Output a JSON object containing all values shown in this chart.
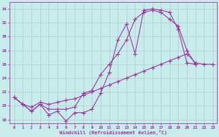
{
  "xlabel": "Windchill (Refroidissement éolien,°C)",
  "bg_color": "#c8ecec",
  "grid_color": "#b0c8c8",
  "line_color": "#993399",
  "markersize": 2.5,
  "xlim": [
    -0.5,
    23.5
  ],
  "ylim": [
    17.5,
    35.0
  ],
  "yticks": [
    18,
    20,
    22,
    24,
    26,
    28,
    30,
    32,
    34
  ],
  "xticks": [
    0,
    1,
    2,
    3,
    4,
    5,
    6,
    7,
    8,
    9,
    10,
    11,
    12,
    13,
    14,
    15,
    16,
    17,
    18,
    19,
    20,
    21,
    22,
    23
  ],
  "line1_x": [
    0,
    1,
    2,
    3,
    4,
    5,
    6,
    7,
    8,
    9,
    10,
    11,
    12,
    13,
    14,
    15,
    16,
    17,
    18,
    19,
    20,
    21
  ],
  "line1_y": [
    21.2,
    20.2,
    19.2,
    20.2,
    18.7,
    19.2,
    17.8,
    19.0,
    19.0,
    19.5,
    21.8,
    24.8,
    29.5,
    31.8,
    27.5,
    33.8,
    34.0,
    33.8,
    33.5,
    31.0,
    26.2,
    26.0
  ],
  "line2_x": [
    0,
    1,
    2,
    3,
    4,
    5,
    6,
    7,
    8,
    9,
    10,
    11,
    12,
    13,
    14,
    15,
    16,
    17,
    18,
    19,
    20,
    21
  ],
  "line2_y": [
    21.2,
    20.2,
    19.2,
    20.2,
    19.5,
    19.5,
    19.5,
    19.8,
    21.8,
    22.2,
    24.5,
    26.0,
    27.5,
    29.5,
    32.5,
    33.5,
    33.8,
    33.5,
    32.5,
    31.5,
    28.0,
    26.0
  ],
  "line3_x": [
    0,
    1,
    2,
    3,
    4,
    5,
    6,
    7,
    8,
    9,
    10,
    11,
    12,
    13,
    14,
    15,
    16,
    17,
    18,
    19,
    20,
    21,
    22,
    23
  ],
  "line3_y": [
    21.2,
    20.2,
    19.8,
    20.5,
    20.2,
    20.5,
    20.8,
    21.0,
    21.5,
    22.0,
    22.5,
    23.0,
    23.5,
    24.0,
    24.5,
    25.0,
    25.5,
    26.0,
    26.5,
    27.0,
    27.5,
    26.2,
    26.0,
    26.0
  ]
}
